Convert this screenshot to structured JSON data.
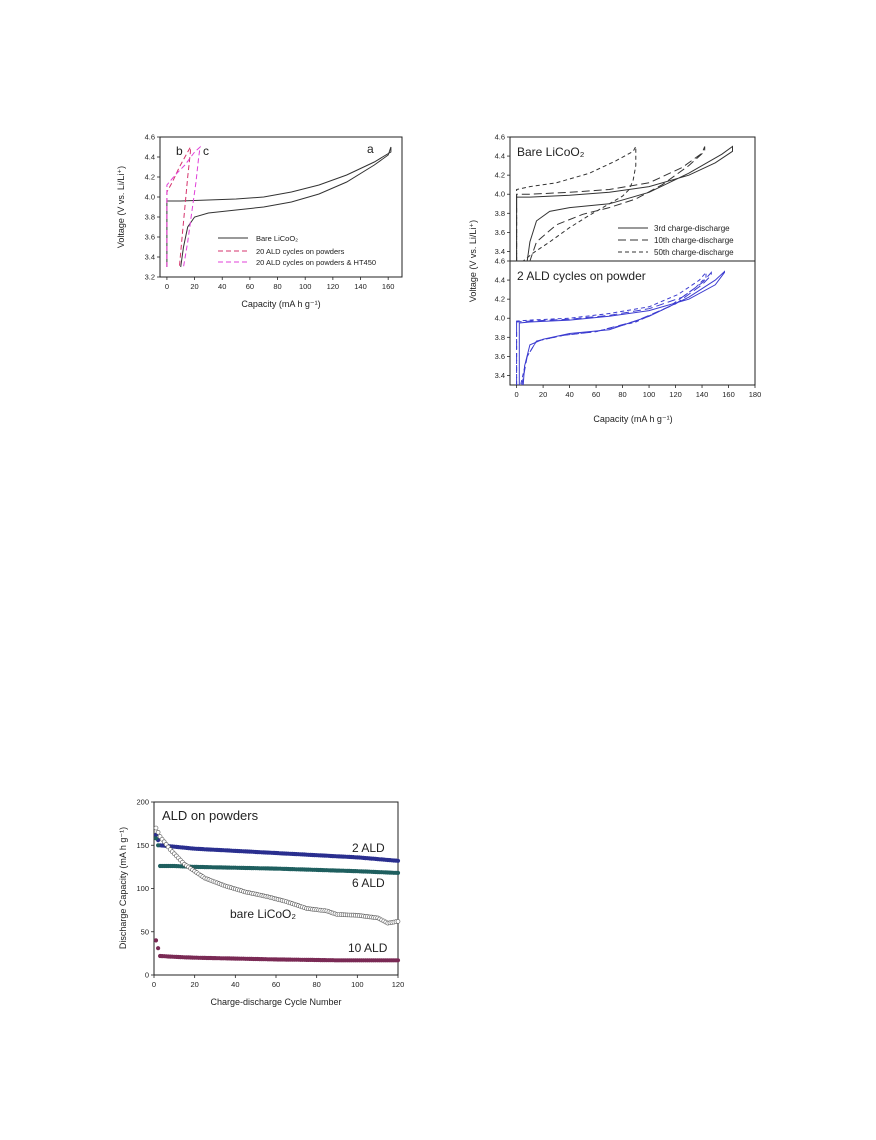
{
  "colors": {
    "bare": "#333333",
    "ald20": "#d6336c",
    "ald20ht": "#e040d8",
    "ald2": "#3b3bd0",
    "c2": "#2a2f8f",
    "c6": "#1f5f5f",
    "c10": "#7a2a55",
    "cbare": "#555555"
  },
  "chart_data": [
    {
      "type": "line",
      "xlabel": "Capacity (mA h g⁻¹)",
      "ylabel": "Voltage (V vs. Li/Li⁺)",
      "xlim": [
        -5,
        170
      ],
      "ylim": [
        3.2,
        4.6
      ],
      "xticks": [
        0,
        20,
        40,
        60,
        80,
        100,
        120,
        140,
        160
      ],
      "yticks": [
        3.2,
        3.4,
        3.6,
        3.8,
        4.0,
        4.2,
        4.4,
        4.6
      ],
      "annotations": [
        "a",
        "b",
        "c"
      ],
      "legend": [
        "Bare LiCoO₂",
        "20 ALD cycles on powders",
        "20 ALD cycles on powders & HT450"
      ],
      "series": [
        {
          "name": "Bare LiCoO₂",
          "style": "solid",
          "color_key": "bare",
          "x": [
            0,
            0,
            10,
            30,
            50,
            70,
            90,
            110,
            130,
            150,
            162,
            162,
            160,
            150,
            130,
            110,
            90,
            70,
            50,
            30,
            20,
            15,
            12,
            10
          ],
          "y": [
            3.3,
            3.96,
            3.96,
            3.97,
            3.98,
            4.0,
            4.05,
            4.12,
            4.22,
            4.35,
            4.45,
            4.5,
            4.42,
            4.32,
            4.15,
            4.03,
            3.95,
            3.9,
            3.87,
            3.84,
            3.8,
            3.7,
            3.5,
            3.3
          ]
        },
        {
          "name": "20 ALD cycles on powders",
          "style": "dashed",
          "color_key": "ald20",
          "x": [
            0,
            0,
            4,
            9,
            15,
            17,
            17,
            15,
            13,
            11,
            9
          ],
          "y": [
            3.3,
            4.05,
            4.15,
            4.3,
            4.45,
            4.5,
            4.45,
            4.2,
            3.9,
            3.6,
            3.3
          ]
        },
        {
          "name": "20 ALD cycles on powders & HT450",
          "style": "dashed",
          "color_key": "ald20ht",
          "x": [
            0,
            0,
            6,
            13,
            20,
            24,
            23,
            21,
            18,
            15,
            12
          ],
          "y": [
            3.3,
            4.12,
            4.22,
            4.32,
            4.45,
            4.5,
            4.4,
            4.15,
            3.85,
            3.55,
            3.3
          ]
        }
      ]
    },
    {
      "type": "line",
      "panel_title": "Bare LiCoO₂",
      "xlim": [
        -5,
        180
      ],
      "ylim": [
        3.3,
        4.6
      ],
      "yticks": [
        3.4,
        3.6,
        3.8,
        4.0,
        4.2,
        4.4,
        4.6
      ],
      "legend": [
        "3rd charge-discharge",
        "10th charge-discharge",
        "50th charge-discharge"
      ],
      "series": [
        {
          "name": "3rd charge-discharge",
          "style": "solid",
          "x": [
            0,
            0,
            10,
            40,
            70,
            100,
            130,
            150,
            163,
            163,
            155,
            130,
            100,
            70,
            40,
            25,
            15,
            10,
            8
          ],
          "y": [
            3.3,
            3.97,
            3.97,
            3.99,
            4.02,
            4.08,
            4.2,
            4.33,
            4.45,
            4.5,
            4.42,
            4.22,
            4.02,
            3.9,
            3.86,
            3.82,
            3.72,
            3.5,
            3.3
          ]
        },
        {
          "name": "10th charge-discharge",
          "style": "longdash",
          "x": [
            0,
            0,
            10,
            40,
            70,
            100,
            125,
            140,
            142,
            142,
            130,
            110,
            90,
            70,
            50,
            30,
            15,
            10
          ],
          "y": [
            3.3,
            4.0,
            4.0,
            4.02,
            4.05,
            4.12,
            4.28,
            4.43,
            4.5,
            4.45,
            4.3,
            4.1,
            3.95,
            3.86,
            3.79,
            3.68,
            3.5,
            3.3
          ]
        },
        {
          "name": "50th charge-discharge",
          "style": "shortdash",
          "x": [
            0,
            0,
            10,
            30,
            55,
            75,
            88,
            90,
            90,
            88,
            85,
            80,
            70,
            55,
            40,
            25,
            12,
            5
          ],
          "y": [
            3.3,
            4.05,
            4.08,
            4.12,
            4.22,
            4.35,
            4.45,
            4.5,
            4.3,
            4.15,
            4.05,
            3.98,
            3.9,
            3.78,
            3.65,
            3.5,
            3.38,
            3.3
          ]
        }
      ]
    },
    {
      "type": "line",
      "panel_title": "2 ALD cycles on powder",
      "xlabel": "Capacity (mA h g⁻¹)",
      "ylabel": "Voltage (V vs. Li/Li⁺)",
      "xlim": [
        -5,
        180
      ],
      "ylim": [
        3.3,
        4.6
      ],
      "xticks": [
        0,
        20,
        40,
        60,
        80,
        100,
        120,
        140,
        160,
        180
      ],
      "yticks": [
        3.4,
        3.6,
        3.8,
        4.0,
        4.2,
        4.4,
        4.6
      ],
      "series": [
        {
          "name": "3rd",
          "style": "solid",
          "x": [
            2,
            2,
            10,
            40,
            70,
            100,
            130,
            150,
            157,
            157,
            150,
            130,
            100,
            70,
            40,
            20,
            10,
            6,
            5
          ],
          "y": [
            3.3,
            3.95,
            3.96,
            3.98,
            4.02,
            4.08,
            4.2,
            4.35,
            4.48,
            4.49,
            4.4,
            4.22,
            4.02,
            3.88,
            3.84,
            3.78,
            3.72,
            3.5,
            3.3
          ]
        },
        {
          "name": "10th",
          "style": "longdash",
          "x": [
            0,
            0,
            10,
            40,
            70,
            100,
            125,
            140,
            147,
            147,
            140,
            120,
            90,
            60,
            35,
            15,
            8,
            4
          ],
          "y": [
            3.3,
            3.96,
            3.97,
            3.99,
            4.03,
            4.1,
            4.22,
            4.37,
            4.48,
            4.45,
            4.35,
            4.15,
            3.97,
            3.86,
            3.82,
            3.76,
            3.6,
            3.3
          ]
        },
        {
          "name": "50th",
          "style": "shortdash",
          "x": [
            0,
            0,
            10,
            40,
            70,
            100,
            122,
            138,
            143,
            143,
            135,
            115,
            90,
            60,
            35,
            15,
            8,
            3
          ],
          "y": [
            3.3,
            3.97,
            3.98,
            4.0,
            4.05,
            4.12,
            4.25,
            4.4,
            4.48,
            4.43,
            4.32,
            4.12,
            3.96,
            3.86,
            3.82,
            3.76,
            3.6,
            3.3
          ]
        }
      ]
    },
    {
      "type": "scatter",
      "panel_title": "ALD on powders",
      "xlabel": "Charge-discharge Cycle Number",
      "ylabel": "Discharge Capacity (mA h g⁻¹)",
      "xlim": [
        0,
        120
      ],
      "ylim": [
        0,
        200
      ],
      "xticks": [
        0,
        20,
        40,
        60,
        80,
        100,
        120
      ],
      "yticks": [
        0,
        50,
        100,
        150,
        200
      ],
      "series": [
        {
          "label": "2 ALD",
          "color_key": "c2",
          "keypoints": [
            [
              1,
              162
            ],
            [
              3,
              150
            ],
            [
              20,
              146
            ],
            [
              60,
              141
            ],
            [
              100,
              136
            ],
            [
              120,
              132
            ]
          ]
        },
        {
          "label": "6 ALD",
          "color_key": "c6",
          "keypoints": [
            [
              1,
              158
            ],
            [
              2,
              150
            ],
            [
              3,
              126
            ],
            [
              10,
              126
            ],
            [
              20,
              125
            ],
            [
              60,
              123
            ],
            [
              100,
              120
            ],
            [
              120,
              118
            ]
          ]
        },
        {
          "label": "bare LiCoO₂",
          "color_key": "cbare",
          "keypoints": [
            [
              1,
              170
            ],
            [
              3,
              160
            ],
            [
              8,
              145
            ],
            [
              15,
              128
            ],
            [
              25,
              112
            ],
            [
              35,
              103
            ],
            [
              45,
              96
            ],
            [
              55,
              91
            ],
            [
              65,
              85
            ],
            [
              75,
              77
            ],
            [
              85,
              74
            ],
            [
              90,
              70
            ],
            [
              100,
              69
            ],
            [
              110,
              66
            ],
            [
              115,
              60
            ],
            [
              120,
              62
            ]
          ]
        },
        {
          "label": "10 ALD",
          "color_key": "c10",
          "keypoints": [
            [
              1,
              40
            ],
            [
              3,
              22
            ],
            [
              10,
              21
            ],
            [
              20,
              20
            ],
            [
              40,
              19
            ],
            [
              60,
              18
            ],
            [
              90,
              17
            ],
            [
              120,
              17
            ]
          ]
        }
      ]
    }
  ]
}
